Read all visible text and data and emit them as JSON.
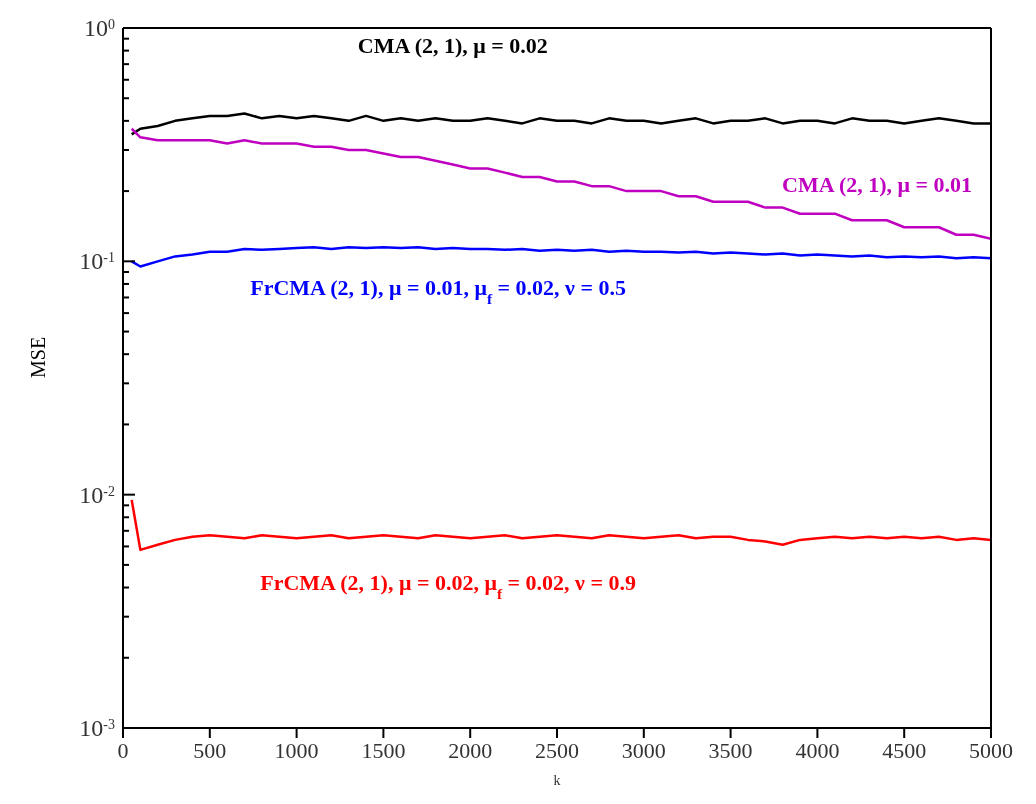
{
  "chart_data": {
    "type": "line",
    "xlabel": "k",
    "ylabel": "MSE",
    "log": "y",
    "marker": "none",
    "line_style": "solid",
    "x": [
      50,
      100,
      200,
      300,
      400,
      500,
      600,
      700,
      800,
      900,
      1000,
      1100,
      1200,
      1300,
      1400,
      1500,
      1600,
      1700,
      1800,
      1900,
      2000,
      2100,
      2200,
      2300,
      2400,
      2500,
      2600,
      2700,
      2800,
      2900,
      3000,
      3100,
      3200,
      3300,
      3400,
      3500,
      3600,
      3700,
      3800,
      3900,
      4000,
      4100,
      4200,
      4300,
      4400,
      4500,
      4600,
      4700,
      4800,
      4900,
      5000
    ],
    "xlim": [
      0,
      5000
    ],
    "xticks": [
      0,
      500,
      1000,
      1500,
      2000,
      2500,
      3000,
      3500,
      4000,
      4500,
      5000
    ],
    "ylim": [
      0.001,
      1
    ],
    "yticks": [
      {
        "value": 0.001,
        "label": "10$^{-3}$"
      },
      {
        "value": 0.002,
        "label": null
      },
      {
        "value": 0.003,
        "label": null
      },
      {
        "value": 0.004,
        "label": null
      },
      {
        "value": 0.005,
        "label": null
      },
      {
        "value": 0.006,
        "label": null
      },
      {
        "value": 0.007,
        "label": null
      },
      {
        "value": 0.008,
        "label": null
      },
      {
        "value": 0.009,
        "label": null
      },
      {
        "value": 0.01,
        "label": "10$^{-2}$"
      },
      {
        "value": 0.02,
        "label": null
      },
      {
        "value": 0.03,
        "label": null
      },
      {
        "value": 0.04,
        "label": null
      },
      {
        "value": 0.05,
        "label": null
      },
      {
        "value": 0.06,
        "label": null
      },
      {
        "value": 0.07,
        "label": null
      },
      {
        "value": 0.08,
        "label": null
      },
      {
        "value": 0.09,
        "label": null
      },
      {
        "value": 0.1,
        "label": "10$^{-1}$"
      },
      {
        "value": 0.2,
        "label": null
      },
      {
        "value": 0.3,
        "label": null
      },
      {
        "value": 0.4,
        "label": null
      },
      {
        "value": 0.5,
        "label": null
      },
      {
        "value": 0.6,
        "label": null
      },
      {
        "value": 0.7,
        "label": null
      },
      {
        "value": 0.8,
        "label": null
      },
      {
        "value": 0.9,
        "label": null
      },
      {
        "value": 1,
        "label": "10$^{0}$"
      }
    ],
    "series": [
      {
        "name": "CMA (2, 1), μ = 0.02",
        "color": "#000000",
        "values": [
          0.35,
          0.37,
          0.38,
          0.4,
          0.41,
          0.42,
          0.42,
          0.43,
          0.41,
          0.42,
          0.41,
          0.42,
          0.41,
          0.4,
          0.42,
          0.4,
          0.41,
          0.4,
          0.41,
          0.4,
          0.4,
          0.41,
          0.4,
          0.39,
          0.41,
          0.4,
          0.4,
          0.39,
          0.41,
          0.4,
          0.4,
          0.39,
          0.4,
          0.41,
          0.39,
          0.4,
          0.4,
          0.41,
          0.39,
          0.4,
          0.4,
          0.39,
          0.41,
          0.4,
          0.4,
          0.39,
          0.4,
          0.41,
          0.4,
          0.39,
          0.39
        ]
      },
      {
        "name": "CMA (2, 1), μ = 0.01",
        "color": "#c000c0",
        "values": [
          0.37,
          0.34,
          0.33,
          0.33,
          0.33,
          0.33,
          0.32,
          0.33,
          0.32,
          0.32,
          0.32,
          0.31,
          0.31,
          0.3,
          0.3,
          0.29,
          0.28,
          0.28,
          0.27,
          0.26,
          0.25,
          0.25,
          0.24,
          0.23,
          0.23,
          0.22,
          0.22,
          0.21,
          0.21,
          0.2,
          0.2,
          0.2,
          0.19,
          0.19,
          0.18,
          0.18,
          0.18,
          0.17,
          0.17,
          0.16,
          0.16,
          0.16,
          0.15,
          0.15,
          0.15,
          0.14,
          0.14,
          0.14,
          0.13,
          0.13,
          0.125
        ]
      },
      {
        "name": "FrCMA (2, 1), μ = 0.01, μ$_{f}$ = 0.02, ν = 0.5",
        "color": "#0000ff",
        "values": [
          0.1,
          0.095,
          0.1,
          0.105,
          0.107,
          0.11,
          0.11,
          0.113,
          0.112,
          0.113,
          0.114,
          0.115,
          0.113,
          0.115,
          0.114,
          0.115,
          0.114,
          0.115,
          0.113,
          0.114,
          0.113,
          0.113,
          0.112,
          0.113,
          0.111,
          0.112,
          0.111,
          0.112,
          0.11,
          0.111,
          0.11,
          0.11,
          0.109,
          0.11,
          0.108,
          0.109,
          0.108,
          0.107,
          0.108,
          0.106,
          0.107,
          0.106,
          0.105,
          0.106,
          0.104,
          0.105,
          0.104,
          0.105,
          0.103,
          0.104,
          0.103
        ]
      },
      {
        "name": "FrCMA (2, 1), μ = 0.02, μ$_{f}$ = 0.02, ν = 0.9",
        "color": "#ff0000",
        "values": [
          0.0095,
          0.0058,
          0.0061,
          0.0064,
          0.0066,
          0.0067,
          0.0066,
          0.0065,
          0.0067,
          0.0066,
          0.0065,
          0.0066,
          0.0067,
          0.0065,
          0.0066,
          0.0067,
          0.0066,
          0.0065,
          0.0067,
          0.0066,
          0.0065,
          0.0066,
          0.0067,
          0.0065,
          0.0066,
          0.0067,
          0.0066,
          0.0065,
          0.0067,
          0.0066,
          0.0065,
          0.0066,
          0.0067,
          0.0065,
          0.0066,
          0.0066,
          0.0064,
          0.0063,
          0.0061,
          0.0064,
          0.0065,
          0.0066,
          0.0065,
          0.0066,
          0.0065,
          0.0066,
          0.0065,
          0.0066,
          0.0064,
          0.0065,
          0.0064
        ]
      }
    ]
  }
}
